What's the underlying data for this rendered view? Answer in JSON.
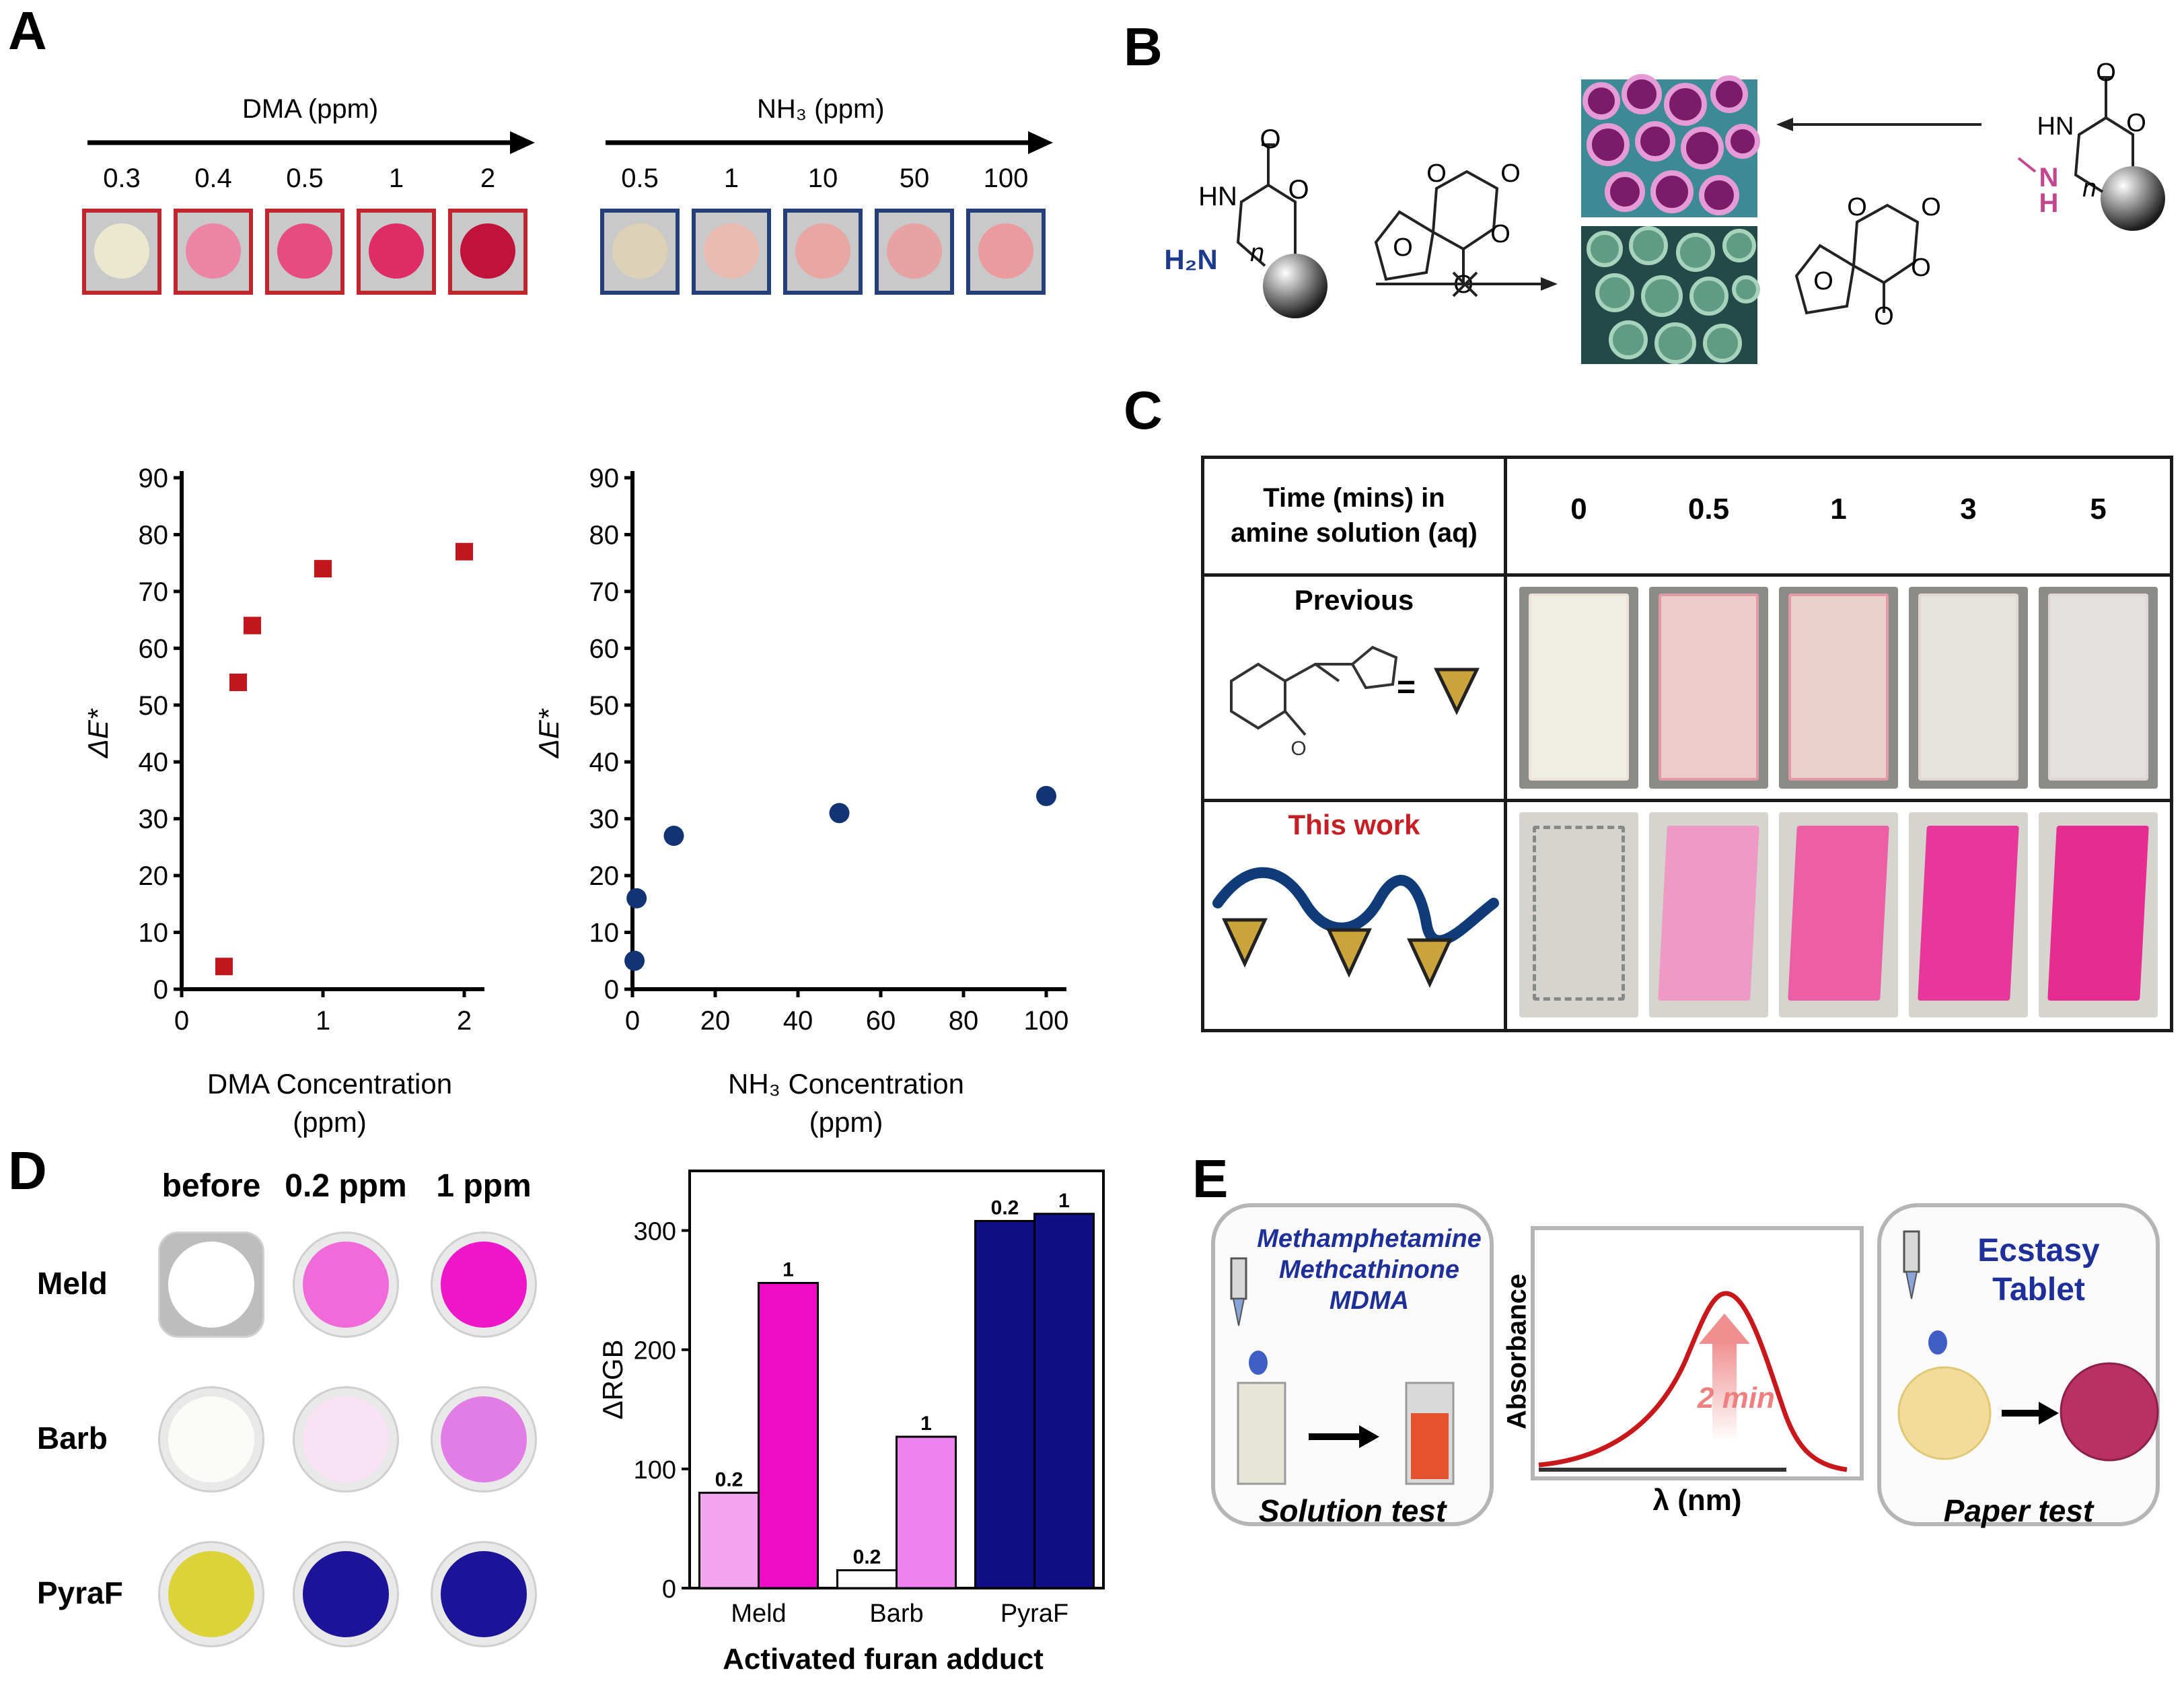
{
  "panels": {
    "a": "A",
    "b": "B",
    "c": "C",
    "d": "D",
    "e": "E"
  },
  "panel_a": {
    "dma_header": "DMA (ppm)",
    "nh3_header": "NH₃ (ppm)",
    "dma_levels": [
      "0.3",
      "0.4",
      "0.5",
      "1",
      "2"
    ],
    "nh3_levels": [
      "0.5",
      "1",
      "10",
      "50",
      "100"
    ],
    "dma_colors": [
      "#ebe8cf",
      "#ec84a6",
      "#e74c80",
      "#de2c66",
      "#c1123c"
    ],
    "nh3_colors": [
      "#ddd2b8",
      "#e9bbb0",
      "#e8a7a2",
      "#e7a3a3",
      "#eb9a9e"
    ],
    "dma_border": "#c0262d",
    "nh3_border": "#253f7a"
  },
  "chart_data": [
    {
      "type": "scatter",
      "title": "",
      "xlabel": "DMA Concentration (ppm)",
      "xlabel_line1": "DMA Concentration",
      "xlabel_line2": "(ppm)",
      "ylabel": "ΔE*",
      "xlim": [
        0,
        2
      ],
      "ylim": [
        0,
        90
      ],
      "xticks": [
        "0",
        "1",
        "2"
      ],
      "yticks": [
        "0",
        "10",
        "20",
        "30",
        "40",
        "50",
        "60",
        "70",
        "80",
        "90"
      ],
      "marker": "square",
      "color": "#c0161c",
      "x": [
        0.3,
        0.4,
        0.5,
        1,
        2
      ],
      "y": [
        4,
        54,
        64,
        74,
        77
      ]
    },
    {
      "type": "scatter",
      "title": "",
      "xlabel": "NH₃ Concentration (ppm)",
      "xlabel_line1": "NH₃ Concentration",
      "xlabel_line2": "(ppm)",
      "ylabel": "ΔE*",
      "xlim": [
        0,
        100
      ],
      "ylim": [
        0,
        90
      ],
      "xticks": [
        "0",
        "20",
        "40",
        "60",
        "80",
        "100"
      ],
      "yticks": [
        "0",
        "10",
        "20",
        "30",
        "40",
        "50",
        "60",
        "70",
        "80",
        "90"
      ],
      "marker": "circle",
      "color": "#123474",
      "x": [
        0.5,
        1,
        10,
        50,
        100
      ],
      "y": [
        5,
        16,
        27,
        31,
        34
      ]
    },
    {
      "type": "bar",
      "title": "",
      "xlabel": "Activated furan adduct",
      "ylabel": "ΔRGB",
      "categories": [
        "Meld",
        "Barb",
        "PyraF"
      ],
      "ylim": [
        0,
        350
      ],
      "yticks": [
        "0",
        "100",
        "200",
        "300"
      ],
      "series": [
        {
          "name": "0.2",
          "values": [
            80,
            15,
            308
          ],
          "colors": [
            "#f3a6ef",
            "#ffffff",
            "#0f0f86"
          ]
        },
        {
          "name": "1",
          "values": [
            256,
            127,
            314
          ],
          "colors": [
            "#ee0cc7",
            "#ee82ee",
            "#0f0f86"
          ]
        }
      ]
    }
  ],
  "panel_b": {
    "h2n": "H₂N",
    "hn": "HN",
    "n_sub": "n",
    "nh": "N",
    "h": "H",
    "o": "O"
  },
  "panel_c": {
    "header_line1": "Time (mins) in",
    "header_line2": "amine solution (aq)",
    "times": [
      "0",
      "0.5",
      "1",
      "3",
      "5"
    ],
    "row1_label": "Previous",
    "row2_label": "This work",
    "equals": "=",
    "prev_colors": [
      "#f1efe3",
      "#ecccca",
      "#ebd0cc",
      "#e6e2dc",
      "#e3e1dd"
    ],
    "this_colors": [
      "#e3e1dd",
      "#ef9ac4",
      "#ec5fa7",
      "#e8379a",
      "#e62c91"
    ]
  },
  "panel_d": {
    "columns": [
      "before",
      "0.2 ppm",
      "1 ppm"
    ],
    "rows": [
      "Meld",
      "Barb",
      "PyraF"
    ],
    "disk_colors": [
      [
        "#ffffff",
        "#f06ad9",
        "#ee16c9"
      ],
      [
        "#fbfbf8",
        "#f8e2f3",
        "#e17de5"
      ],
      [
        "#dcd23a",
        "#1b1398",
        "#1b1398"
      ]
    ]
  },
  "panel_e": {
    "drug1": "Methamphetamine",
    "drug2": "Methcathinone",
    "drug3": "MDMA",
    "solution_label": "Solution test",
    "absorbance": "Absorbance",
    "lambda_label": "λ (nm)",
    "time_label": "2 min",
    "ecstasy1": "Ecstasy",
    "ecstasy2": "Tablet",
    "paper_label": "Paper test"
  }
}
